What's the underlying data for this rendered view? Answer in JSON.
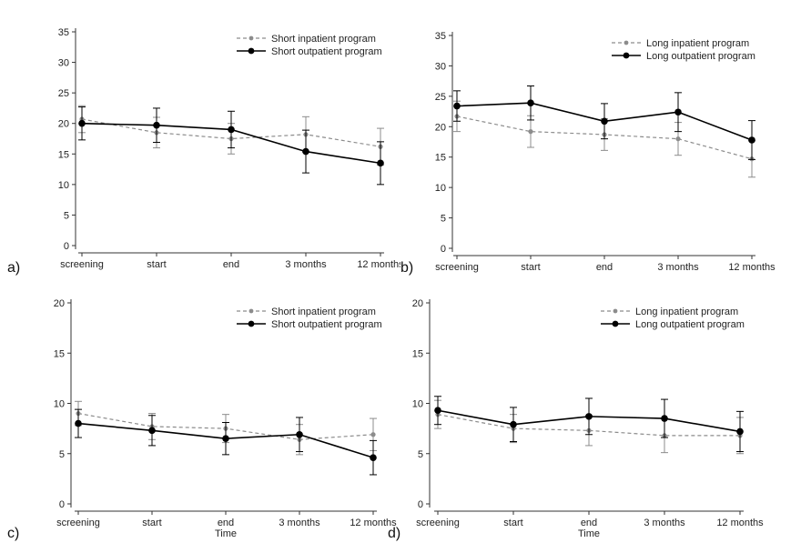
{
  "chart_data": [
    {
      "panel": "a)",
      "type": "line",
      "categories": [
        "screening",
        "start",
        "end",
        "3 months",
        "12 months"
      ],
      "y_ticks": [
        0,
        5,
        10,
        15,
        20,
        25,
        30,
        35
      ],
      "ylim": [
        0,
        35
      ],
      "xlabel": "",
      "series": [
        {
          "name": "Short inpatient program",
          "style": "dashed",
          "color": "#8c8c8c",
          "values": [
            20.7,
            18.5,
            17.5,
            18.2,
            16.2
          ],
          "err": [
            2.2,
            2.5,
            2.5,
            2.9,
            3.0
          ]
        },
        {
          "name": "Short outpatient program",
          "style": "solid",
          "color": "#000000",
          "values": [
            20.0,
            19.7,
            19.0,
            15.4,
            13.5
          ],
          "err": [
            2.7,
            2.8,
            3.0,
            3.5,
            3.5
          ]
        }
      ]
    },
    {
      "panel": "b)",
      "type": "line",
      "categories": [
        "screening",
        "start",
        "end",
        "3 months",
        "12 months"
      ],
      "y_ticks": [
        0,
        5,
        10,
        15,
        20,
        25,
        30,
        35
      ],
      "ylim": [
        0,
        35
      ],
      "xlabel": "",
      "series": [
        {
          "name": "Long inpatient program",
          "style": "dashed",
          "color": "#8c8c8c",
          "values": [
            21.7,
            19.2,
            18.7,
            18.0,
            14.7
          ],
          "err": [
            2.5,
            2.6,
            2.6,
            2.7,
            3.0
          ]
        },
        {
          "name": "Long outpatient program",
          "style": "solid",
          "color": "#000000",
          "values": [
            23.4,
            23.9,
            20.9,
            22.4,
            17.8
          ],
          "err": [
            2.5,
            2.8,
            2.9,
            3.2,
            3.2
          ]
        }
      ]
    },
    {
      "panel": "c)",
      "type": "line",
      "categories": [
        "screening",
        "start",
        "end",
        "3 months",
        "12 months"
      ],
      "y_ticks": [
        0,
        5,
        10,
        15,
        20
      ],
      "ylim": [
        0,
        20
      ],
      "xlabel": "Time",
      "series": [
        {
          "name": "Short inpatient program",
          "style": "dashed",
          "color": "#8c8c8c",
          "values": [
            9.0,
            7.7,
            7.5,
            6.4,
            6.9
          ],
          "err": [
            1.2,
            1.3,
            1.4,
            1.5,
            1.6
          ]
        },
        {
          "name": "Short outpatient program",
          "style": "solid",
          "color": "#000000",
          "values": [
            8.0,
            7.3,
            6.5,
            6.9,
            4.6
          ],
          "err": [
            1.4,
            1.5,
            1.6,
            1.7,
            1.7
          ]
        }
      ]
    },
    {
      "panel": "d)",
      "type": "line",
      "categories": [
        "screening",
        "start",
        "end",
        "3 months",
        "12 months"
      ],
      "y_ticks": [
        0,
        5,
        10,
        15,
        20
      ],
      "ylim": [
        0,
        20
      ],
      "xlabel": "Time",
      "series": [
        {
          "name": "Long inpatient program",
          "style": "dashed",
          "color": "#8c8c8c",
          "values": [
            8.9,
            7.5,
            7.3,
            6.8,
            6.8
          ],
          "err": [
            1.4,
            1.4,
            1.5,
            1.7,
            1.8
          ]
        },
        {
          "name": "Long outpatient program",
          "style": "solid",
          "color": "#000000",
          "values": [
            9.3,
            7.9,
            8.7,
            8.5,
            7.2
          ],
          "err": [
            1.4,
            1.7,
            1.8,
            1.9,
            2.0
          ]
        }
      ]
    }
  ]
}
